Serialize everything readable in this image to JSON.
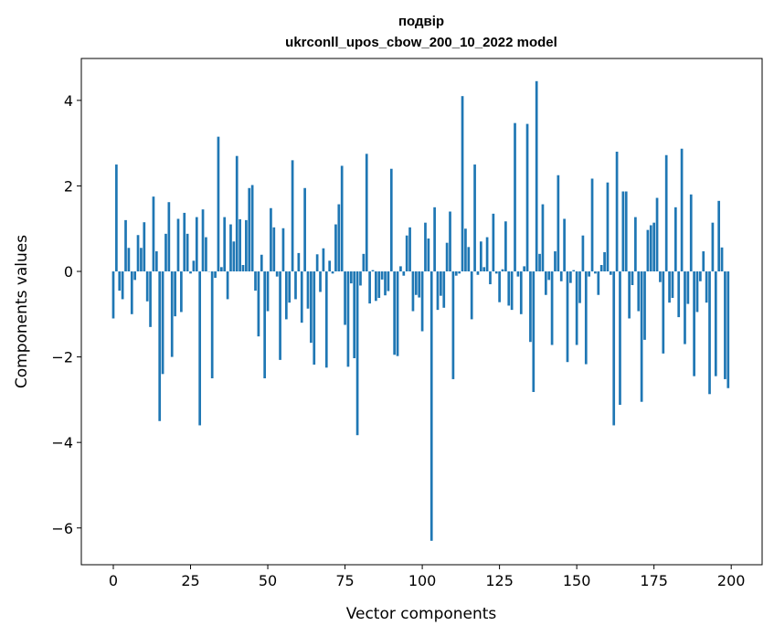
{
  "chart_data": {
    "type": "bar",
    "title_line1": "подвір",
    "title_line2": "ukrconll_upos_cbow_200_10_2022 model",
    "xlabel": "Vector components",
    "ylabel": "Components values",
    "xlim": [
      -10.35,
      210
    ],
    "ylim": [
      -6.86,
      4.98
    ],
    "xticks": [
      0,
      25,
      50,
      75,
      100,
      125,
      150,
      175,
      200
    ],
    "yticks": [
      -6,
      -4,
      -2,
      0,
      2,
      4
    ],
    "ytick_labels": [
      "−6",
      "−4",
      "−2",
      "0",
      "2",
      "4"
    ],
    "grid": false,
    "color": "#1f77b4",
    "values": [
      -1.1,
      2.5,
      -0.45,
      -0.65,
      1.2,
      0.55,
      -1.0,
      -0.2,
      0.85,
      0.55,
      1.15,
      -0.7,
      -1.3,
      1.75,
      0.47,
      -3.5,
      -2.4,
      0.88,
      1.62,
      -2.0,
      -1.05,
      1.23,
      -0.95,
      1.37,
      0.88,
      -0.05,
      0.25,
      1.27,
      -3.6,
      1.45,
      0.8,
      0.0,
      -2.5,
      -0.15,
      3.15,
      0.1,
      1.27,
      -0.65,
      1.1,
      0.7,
      2.7,
      1.22,
      0.15,
      1.2,
      1.95,
      2.02,
      -0.45,
      -1.52,
      0.39,
      -2.5,
      -0.93,
      1.48,
      1.03,
      -0.12,
      -2.07,
      1.01,
      -1.12,
      -0.73,
      2.6,
      -0.65,
      0.43,
      -1.2,
      1.95,
      -0.87,
      -1.67,
      -2.18,
      0.4,
      -0.48,
      0.54,
      -2.25,
      0.25,
      -0.05,
      1.1,
      1.57,
      2.47,
      -1.25,
      -2.23,
      -0.28,
      -2.03,
      -3.83,
      -0.33,
      0.41,
      2.75,
      -0.75,
      0.03,
      -0.69,
      -0.62,
      -0.19,
      -0.56,
      -0.46,
      2.4,
      -1.95,
      -1.98,
      0.12,
      -0.1,
      0.84,
      1.03,
      -0.93,
      -0.55,
      -0.61,
      -1.4,
      1.14,
      0.77,
      -6.3,
      1.5,
      -0.9,
      -0.57,
      -0.85,
      0.67,
      1.4,
      -2.52,
      -0.1,
      -0.05,
      4.1,
      1.0,
      0.57,
      -1.12,
      2.5,
      -0.08,
      0.7,
      0.1,
      0.8,
      -0.3,
      1.35,
      -0.05,
      -0.72,
      0.05,
      1.17,
      -0.8,
      -0.9,
      3.47,
      -0.12,
      -1.0,
      0.12,
      3.45,
      -1.65,
      -2.82,
      4.45,
      0.41,
      1.57,
      -0.55,
      -0.2,
      -1.72,
      0.47,
      2.25,
      -0.23,
      1.23,
      -2.12,
      -0.27,
      0.03,
      -1.72,
      -0.74,
      0.84,
      -2.17,
      -0.12,
      2.17,
      -0.05,
      -0.55,
      0.15,
      0.45,
      2.08,
      -0.08,
      -3.6,
      2.8,
      -3.12,
      1.87,
      1.87,
      -1.1,
      -0.32,
      1.27,
      -0.93,
      -3.05,
      -1.6,
      0.97,
      1.08,
      1.14,
      1.72,
      -0.25,
      -1.92,
      2.72,
      -0.73,
      -0.62,
      1.5,
      -1.07,
      2.87,
      -1.7,
      -0.76,
      1.8,
      -2.45,
      -0.95,
      -0.23,
      0.47,
      -0.73,
      -2.87,
      1.14,
      -2.45,
      1.65,
      0.56,
      -2.52,
      -2.73
    ]
  }
}
